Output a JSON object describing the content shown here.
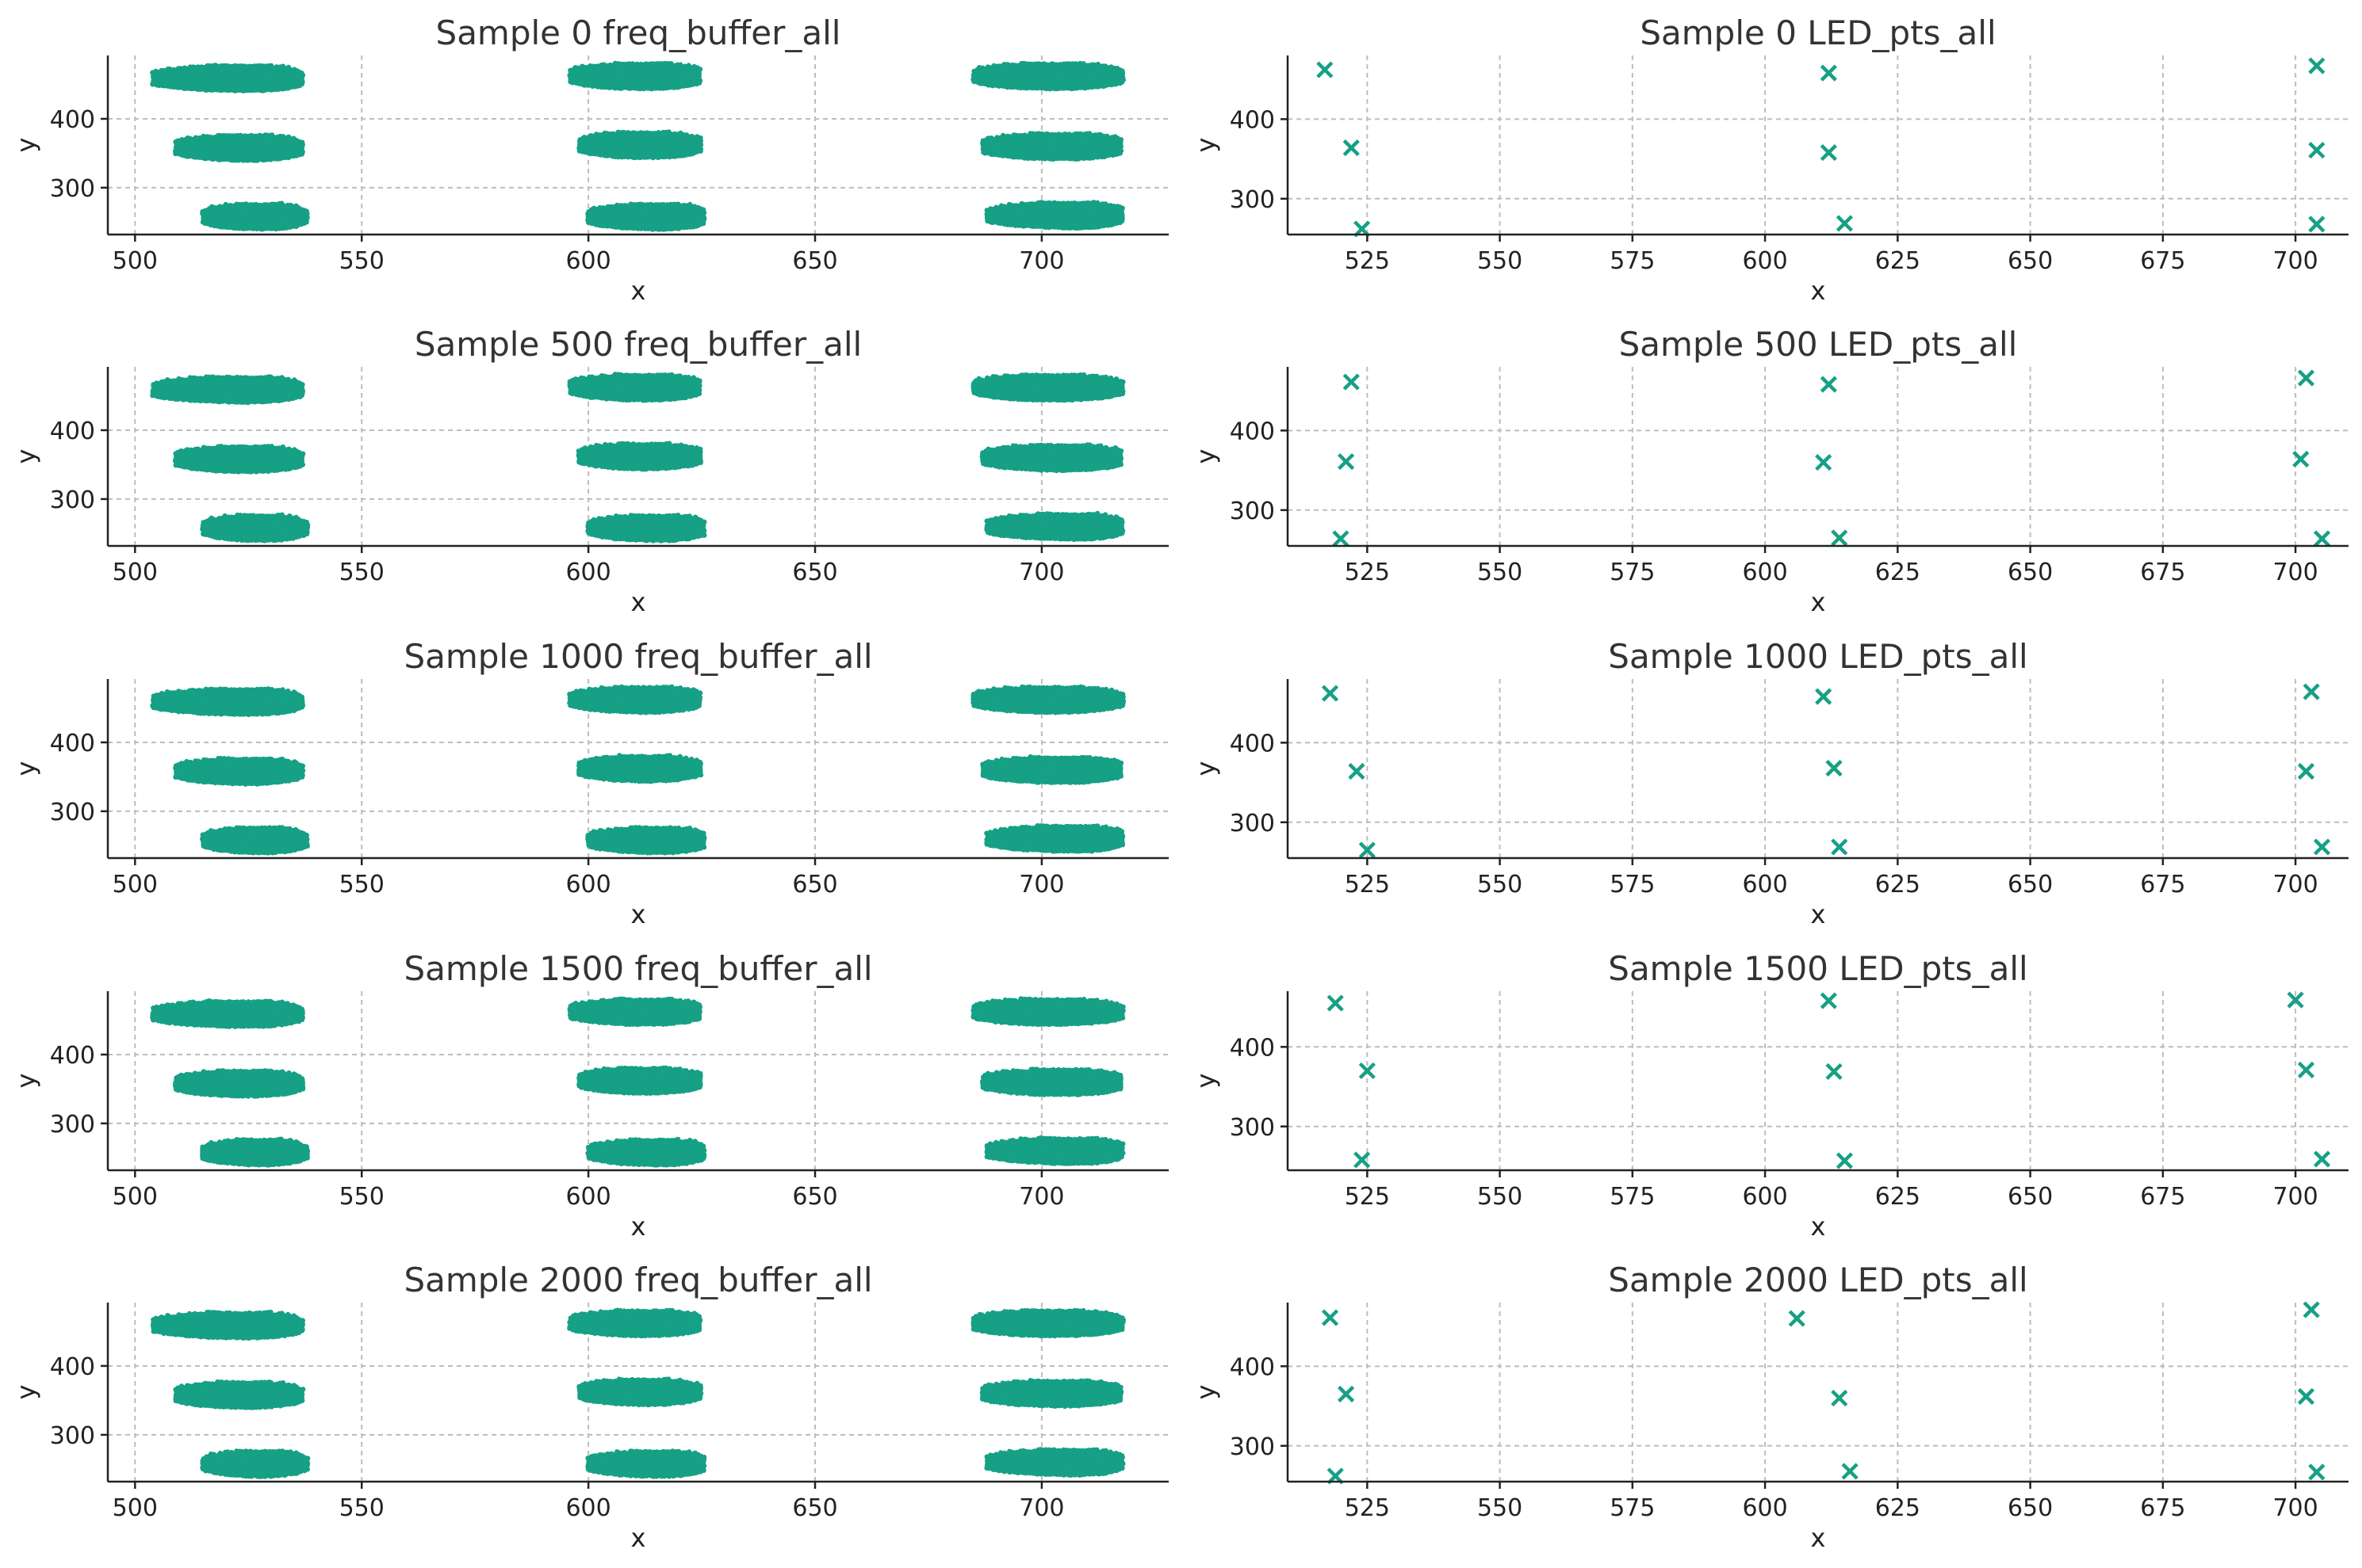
{
  "marker_color": "#16a085",
  "chart_data": [
    {
      "type": "scatter",
      "kind": "blobs",
      "title": "Sample 0 freq_buffer_all",
      "xlabel": "x",
      "ylabel": "y",
      "xlim": [
        494,
        728
      ],
      "ylim": [
        232,
        492
      ],
      "xticks": [
        500,
        550,
        600,
        650,
        700
      ],
      "yticks": [
        300,
        400
      ],
      "grid": true,
      "marker": "dot",
      "clusters": [
        {
          "x": [
            504,
            537
          ],
          "y": 460,
          "center_x": 525
        },
        {
          "x": [
            509,
            537
          ],
          "y": 359,
          "center_x": 525
        },
        {
          "x": [
            515,
            538
          ],
          "y": 259,
          "center_x": 528
        },
        {
          "x": [
            596,
            625
          ],
          "y": 463,
          "center_x": 613
        },
        {
          "x": [
            598,
            625
          ],
          "y": 363,
          "center_x": 613
        },
        {
          "x": [
            600,
            626
          ],
          "y": 259,
          "center_x": 616
        },
        {
          "x": [
            685,
            718
          ],
          "y": 463,
          "center_x": 703
        },
        {
          "x": [
            687,
            718
          ],
          "y": 361,
          "center_x": 705
        },
        {
          "x": [
            688,
            718
          ],
          "y": 261,
          "center_x": 708
        }
      ]
    },
    {
      "type": "scatter",
      "kind": "points",
      "title": "Sample 0 LED_pts_all",
      "xlabel": "x",
      "ylabel": "y",
      "xlim": [
        510,
        710
      ],
      "ylim": [
        255,
        480
      ],
      "xticks": [
        525,
        550,
        575,
        600,
        625,
        650,
        675,
        700
      ],
      "yticks": [
        300,
        400
      ],
      "grid": true,
      "marker": "x",
      "x": [
        517,
        522,
        524,
        612,
        612,
        615,
        704,
        704,
        704
      ],
      "y": [
        462,
        364,
        262,
        458,
        358,
        269,
        467,
        361,
        268
      ]
    },
    {
      "type": "scatter",
      "kind": "blobs",
      "title": "Sample 500 freq_buffer_all",
      "xlabel": "x",
      "ylabel": "y",
      "xlim": [
        494,
        728
      ],
      "ylim": [
        232,
        492
      ],
      "xticks": [
        500,
        550,
        600,
        650,
        700
      ],
      "yticks": [
        300,
        400
      ],
      "grid": true,
      "marker": "dot",
      "clusters": [
        {
          "x": [
            504,
            537
          ],
          "y": 460,
          "center_x": 525
        },
        {
          "x": [
            509,
            537
          ],
          "y": 359,
          "center_x": 525
        },
        {
          "x": [
            515,
            538
          ],
          "y": 259,
          "center_x": 528
        },
        {
          "x": [
            596,
            625
          ],
          "y": 463,
          "center_x": 613
        },
        {
          "x": [
            598,
            625
          ],
          "y": 363,
          "center_x": 613
        },
        {
          "x": [
            600,
            626
          ],
          "y": 259,
          "center_x": 616
        },
        {
          "x": [
            685,
            718
          ],
          "y": 463,
          "center_x": 703
        },
        {
          "x": [
            687,
            718
          ],
          "y": 361,
          "center_x": 705
        },
        {
          "x": [
            688,
            718
          ],
          "y": 261,
          "center_x": 708
        }
      ]
    },
    {
      "type": "scatter",
      "kind": "points",
      "title": "Sample 500 LED_pts_all",
      "xlabel": "x",
      "ylabel": "y",
      "xlim": [
        510,
        710
      ],
      "ylim": [
        255,
        480
      ],
      "xticks": [
        525,
        550,
        575,
        600,
        625,
        650,
        675,
        700
      ],
      "yticks": [
        300,
        400
      ],
      "grid": true,
      "marker": "x",
      "x": [
        522,
        521,
        520,
        612,
        611,
        614,
        702,
        701,
        705
      ],
      "y": [
        461,
        361,
        264,
        458,
        360,
        265,
        466,
        364,
        264
      ]
    },
    {
      "type": "scatter",
      "kind": "blobs",
      "title": "Sample 1000 freq_buffer_all",
      "xlabel": "x",
      "ylabel": "y",
      "xlim": [
        494,
        728
      ],
      "ylim": [
        232,
        492
      ],
      "xticks": [
        500,
        550,
        600,
        650,
        700
      ],
      "yticks": [
        300,
        400
      ],
      "grid": true,
      "marker": "dot",
      "clusters": [
        {
          "x": [
            504,
            537
          ],
          "y": 460,
          "center_x": 525
        },
        {
          "x": [
            509,
            537
          ],
          "y": 359,
          "center_x": 525
        },
        {
          "x": [
            515,
            538
          ],
          "y": 259,
          "center_x": 528
        },
        {
          "x": [
            596,
            625
          ],
          "y": 463,
          "center_x": 613
        },
        {
          "x": [
            598,
            625
          ],
          "y": 363,
          "center_x": 613
        },
        {
          "x": [
            600,
            626
          ],
          "y": 259,
          "center_x": 616
        },
        {
          "x": [
            685,
            718
          ],
          "y": 463,
          "center_x": 703
        },
        {
          "x": [
            687,
            718
          ],
          "y": 361,
          "center_x": 705
        },
        {
          "x": [
            688,
            718
          ],
          "y": 261,
          "center_x": 708
        }
      ]
    },
    {
      "type": "scatter",
      "kind": "points",
      "title": "Sample 1000 LED_pts_all",
      "xlabel": "x",
      "ylabel": "y",
      "xlim": [
        510,
        710
      ],
      "ylim": [
        255,
        480
      ],
      "xticks": [
        525,
        550,
        575,
        600,
        625,
        650,
        675,
        700
      ],
      "yticks": [
        300,
        400
      ],
      "grid": true,
      "marker": "x",
      "x": [
        518,
        523,
        525,
        611,
        613,
        614,
        703,
        702,
        705
      ],
      "y": [
        462,
        364,
        265,
        458,
        368,
        269,
        464,
        364,
        269
      ]
    },
    {
      "type": "scatter",
      "kind": "blobs",
      "title": "Sample 1500 freq_buffer_all",
      "xlabel": "x",
      "ylabel": "y",
      "xlim": [
        494,
        728
      ],
      "ylim": [
        232,
        492
      ],
      "xticks": [
        500,
        550,
        600,
        650,
        700
      ],
      "yticks": [
        300,
        400
      ],
      "grid": true,
      "marker": "dot",
      "clusters": [
        {
          "x": [
            504,
            537
          ],
          "y": 460,
          "center_x": 525
        },
        {
          "x": [
            509,
            537
          ],
          "y": 359,
          "center_x": 525
        },
        {
          "x": [
            515,
            538
          ],
          "y": 259,
          "center_x": 528
        },
        {
          "x": [
            596,
            625
          ],
          "y": 463,
          "center_x": 613
        },
        {
          "x": [
            598,
            625
          ],
          "y": 363,
          "center_x": 613
        },
        {
          "x": [
            600,
            626
          ],
          "y": 259,
          "center_x": 616
        },
        {
          "x": [
            685,
            718
          ],
          "y": 463,
          "center_x": 703
        },
        {
          "x": [
            687,
            718
          ],
          "y": 361,
          "center_x": 705
        },
        {
          "x": [
            688,
            718
          ],
          "y": 261,
          "center_x": 708
        }
      ]
    },
    {
      "type": "scatter",
      "kind": "points",
      "title": "Sample 1500 LED_pts_all",
      "xlabel": "x",
      "ylabel": "y",
      "xlim": [
        510,
        710
      ],
      "ylim": [
        245,
        470
      ],
      "xticks": [
        525,
        550,
        575,
        600,
        625,
        650,
        675,
        700
      ],
      "yticks": [
        300,
        400
      ],
      "grid": true,
      "marker": "x",
      "x": [
        519,
        525,
        524,
        612,
        613,
        615,
        700,
        702,
        705
      ],
      "y": [
        455,
        370,
        258,
        458,
        369,
        257,
        459,
        371,
        259
      ]
    },
    {
      "type": "scatter",
      "kind": "blobs",
      "title": "Sample 2000 freq_buffer_all",
      "xlabel": "x",
      "ylabel": "y",
      "xlim": [
        494,
        728
      ],
      "ylim": [
        232,
        492
      ],
      "xticks": [
        500,
        550,
        600,
        650,
        700
      ],
      "yticks": [
        300,
        400
      ],
      "grid": true,
      "marker": "dot",
      "clusters": [
        {
          "x": [
            504,
            537
          ],
          "y": 460,
          "center_x": 525
        },
        {
          "x": [
            509,
            537
          ],
          "y": 359,
          "center_x": 525
        },
        {
          "x": [
            515,
            538
          ],
          "y": 259,
          "center_x": 528
        },
        {
          "x": [
            596,
            625
          ],
          "y": 463,
          "center_x": 613
        },
        {
          "x": [
            598,
            625
          ],
          "y": 363,
          "center_x": 613
        },
        {
          "x": [
            600,
            626
          ],
          "y": 259,
          "center_x": 616
        },
        {
          "x": [
            685,
            718
          ],
          "y": 463,
          "center_x": 703
        },
        {
          "x": [
            687,
            718
          ],
          "y": 361,
          "center_x": 705
        },
        {
          "x": [
            688,
            718
          ],
          "y": 261,
          "center_x": 708
        }
      ]
    },
    {
      "type": "scatter",
      "kind": "points",
      "title": "Sample 2000 LED_pts_all",
      "xlabel": "x",
      "ylabel": "y",
      "xlim": [
        510,
        710
      ],
      "ylim": [
        255,
        480
      ],
      "xticks": [
        525,
        550,
        575,
        600,
        625,
        650,
        675,
        700
      ],
      "yticks": [
        300,
        400
      ],
      "grid": true,
      "marker": "x",
      "x": [
        518,
        521,
        519,
        606,
        614,
        616,
        703,
        702,
        704
      ],
      "y": [
        461,
        365,
        262,
        460,
        360,
        268,
        471,
        362,
        267
      ]
    }
  ]
}
